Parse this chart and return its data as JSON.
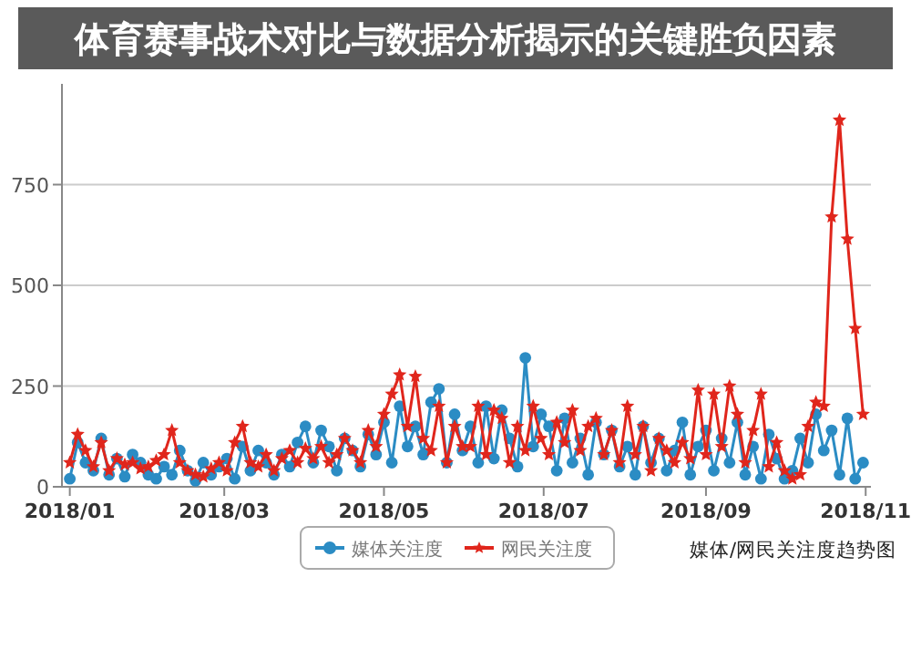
{
  "chart_data": {
    "type": "line",
    "title": "体育赛事战术对比与数据分析揭示的关键胜负因素",
    "annotations": [
      "媒体/网民关注度趋势图"
    ],
    "x": [
      "2018-01-01",
      "2018-01-04",
      "2018-01-07",
      "2018-01-10",
      "2018-01-13",
      "2018-01-16",
      "2018-01-19",
      "2018-01-22",
      "2018-01-25",
      "2018-01-28",
      "2018-01-31",
      "2018-02-03",
      "2018-02-06",
      "2018-02-09",
      "2018-02-12",
      "2018-02-15",
      "2018-02-18",
      "2018-02-21",
      "2018-02-24",
      "2018-02-27",
      "2018-03-02",
      "2018-03-05",
      "2018-03-08",
      "2018-03-11",
      "2018-03-14",
      "2018-03-17",
      "2018-03-20",
      "2018-03-23",
      "2018-03-26",
      "2018-03-29",
      "2018-04-01",
      "2018-04-04",
      "2018-04-07",
      "2018-04-10",
      "2018-04-13",
      "2018-04-16",
      "2018-04-19",
      "2018-04-22",
      "2018-04-25",
      "2018-04-28",
      "2018-05-01",
      "2018-05-04",
      "2018-05-07",
      "2018-05-10",
      "2018-05-13",
      "2018-05-16",
      "2018-05-19",
      "2018-05-22",
      "2018-05-25",
      "2018-05-28",
      "2018-05-31",
      "2018-06-03",
      "2018-06-06",
      "2018-06-09",
      "2018-06-12",
      "2018-06-15",
      "2018-06-18",
      "2018-06-21",
      "2018-06-24",
      "2018-06-27",
      "2018-06-30",
      "2018-07-03",
      "2018-07-06",
      "2018-07-09",
      "2018-07-12",
      "2018-07-15",
      "2018-07-18",
      "2018-07-21",
      "2018-07-24",
      "2018-07-27",
      "2018-07-30",
      "2018-08-02",
      "2018-08-05",
      "2018-08-08",
      "2018-08-11",
      "2018-08-14",
      "2018-08-17",
      "2018-08-20",
      "2018-08-23",
      "2018-08-26",
      "2018-08-29",
      "2018-09-01",
      "2018-09-04",
      "2018-09-07",
      "2018-09-10",
      "2018-09-13",
      "2018-09-16",
      "2018-09-19",
      "2018-09-22",
      "2018-09-25",
      "2018-09-28",
      "2018-10-01",
      "2018-10-04",
      "2018-10-07",
      "2018-10-10",
      "2018-10-13",
      "2018-10-16",
      "2018-10-19",
      "2018-10-22",
      "2018-10-25",
      "2018-10-28",
      "2018-10-31"
    ],
    "series": [
      {
        "name": "媒体关注度",
        "color": "#2b8cc4",
        "marker": "circle",
        "values": [
          20,
          110,
          60,
          40,
          120,
          30,
          70,
          25,
          80,
          60,
          30,
          20,
          50,
          30,
          90,
          40,
          15,
          60,
          30,
          50,
          70,
          20,
          100,
          40,
          90,
          60,
          30,
          80,
          50,
          110,
          150,
          60,
          140,
          100,
          40,
          120,
          90,
          50,
          130,
          80,
          160,
          60,
          200,
          100,
          150,
          80,
          210,
          243,
          60,
          180,
          90,
          150,
          60,
          200,
          70,
          190,
          120,
          50,
          320,
          100,
          180,
          150,
          40,
          170,
          60,
          120,
          30,
          160,
          80,
          140,
          50,
          100,
          30,
          150,
          60,
          120,
          40,
          90,
          160,
          30,
          100,
          140,
          40,
          120,
          60,
          160,
          30,
          100,
          20,
          130,
          70,
          20,
          40,
          120,
          60,
          180,
          90,
          140,
          30,
          170,
          20,
          60
        ]
      },
      {
        "name": "网民关注度",
        "color": "#e0261c",
        "marker": "star",
        "values": [
          60,
          130,
          90,
          50,
          110,
          40,
          70,
          55,
          60,
          45,
          50,
          65,
          80,
          140,
          60,
          40,
          30,
          25,
          45,
          60,
          40,
          110,
          150,
          60,
          50,
          80,
          40,
          70,
          90,
          60,
          95,
          70,
          100,
          60,
          80,
          120,
          90,
          60,
          140,
          100,
          180,
          230,
          278,
          150,
          274,
          120,
          90,
          200,
          60,
          150,
          100,
          100,
          200,
          80,
          190,
          170,
          60,
          150,
          90,
          200,
          120,
          80,
          160,
          110,
          190,
          90,
          150,
          170,
          80,
          140,
          60,
          200,
          80,
          150,
          40,
          120,
          90,
          60,
          110,
          70,
          240,
          80,
          230,
          100,
          250,
          180,
          60,
          140,
          230,
          50,
          110,
          40,
          20,
          30,
          150,
          210,
          200,
          670,
          910,
          615,
          393,
          180
        ]
      }
    ],
    "xlim": [
      "2017-12-29",
      "2018-11-03"
    ],
    "xticks": [
      {
        "value": "2018-01-01",
        "label": "2018/01"
      },
      {
        "value": "2018-03-01",
        "label": "2018/03"
      },
      {
        "value": "2018-05-01",
        "label": "2018/05"
      },
      {
        "value": "2018-07-01",
        "label": "2018/07"
      },
      {
        "value": "2018-09-01",
        "label": "2018/09"
      },
      {
        "value": "2018-11-01",
        "label": "2018/11"
      }
    ],
    "ylim": [
      0,
      1000
    ],
    "yticks": [
      0,
      250,
      500,
      750
    ],
    "grid": "y",
    "legend": "bottom",
    "line_style": "solid"
  }
}
